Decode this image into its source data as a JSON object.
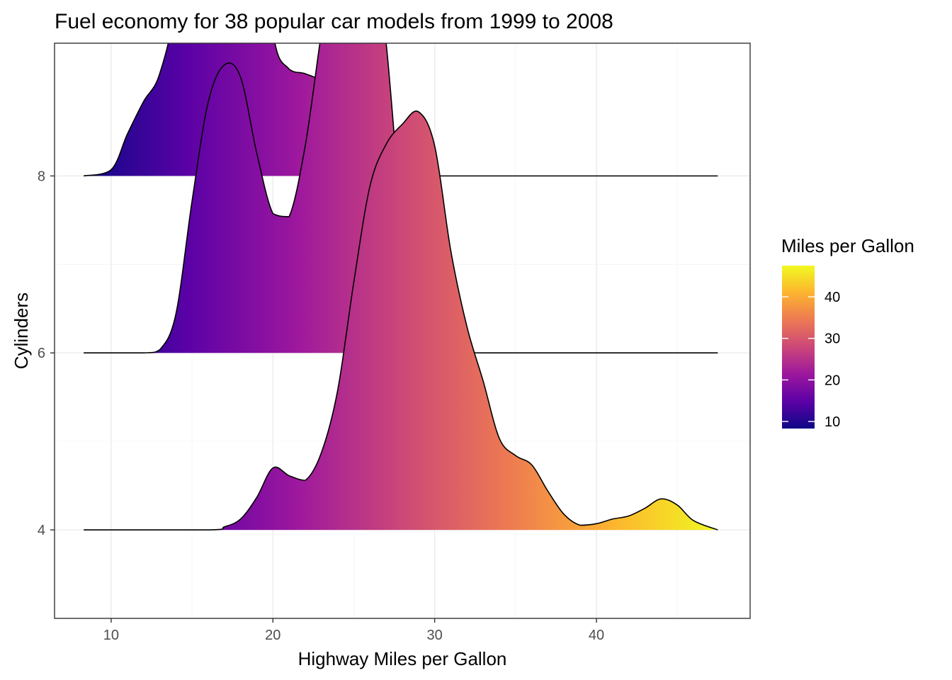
{
  "chart_data": {
    "type": "ridgeline",
    "title": "Fuel economy for 38 popular car models from 1999 to 2008",
    "xlabel": "Highway Miles per Gallon",
    "ylabel": "Cylinders",
    "xlim": [
      6.5,
      49.5
    ],
    "ylim": [
      3,
      9.5
    ],
    "x_ticks": [
      10,
      20,
      30,
      40
    ],
    "y_ticks": [
      4,
      6,
      8
    ],
    "grid": true,
    "density_height_scale": 1.75,
    "series": [
      {
        "cylinders": 8,
        "x": [
          8.3,
          10,
          11,
          12,
          13,
          14,
          15,
          16,
          17,
          18,
          19,
          20,
          21,
          22,
          23,
          24,
          25,
          26,
          27,
          28,
          29,
          30,
          31,
          32,
          47.5
        ],
        "density": [
          0.0,
          0.004,
          0.027,
          0.048,
          0.066,
          0.115,
          0.23,
          0.35,
          0.376,
          0.33,
          0.205,
          0.093,
          0.069,
          0.066,
          0.061,
          0.049,
          0.032,
          0.02,
          0.01,
          0.004,
          0.001,
          0.0,
          0.0,
          0.0,
          0.0
        ]
      },
      {
        "cylinders": 6,
        "x": [
          8.3,
          12,
          13,
          14,
          15,
          16,
          17,
          18,
          19,
          20,
          21,
          22,
          23,
          24,
          25,
          26,
          27,
          28,
          29,
          30,
          31,
          32,
          33,
          47.5
        ],
        "density": [
          0.0,
          0.0,
          0.002,
          0.025,
          0.098,
          0.162,
          0.186,
          0.178,
          0.129,
          0.09,
          0.088,
          0.134,
          0.207,
          0.273,
          0.307,
          0.283,
          0.2,
          0.085,
          0.038,
          0.019,
          0.008,
          0.002,
          0.0,
          0.0
        ]
      },
      {
        "cylinders": 4,
        "x": [
          8.3,
          16,
          17,
          18,
          19,
          20,
          21,
          22,
          23,
          24,
          25,
          26,
          27,
          28,
          29,
          30,
          31,
          32,
          33,
          34,
          35,
          36,
          37,
          38,
          39,
          40,
          41,
          42,
          43,
          44,
          45,
          46,
          47.5
        ],
        "density": [
          0.0,
          0.0,
          0.002,
          0.007,
          0.021,
          0.04,
          0.035,
          0.032,
          0.05,
          0.09,
          0.16,
          0.222,
          0.249,
          0.262,
          0.27,
          0.248,
          0.18,
          0.131,
          0.096,
          0.059,
          0.048,
          0.042,
          0.025,
          0.01,
          0.003,
          0.004,
          0.007,
          0.009,
          0.014,
          0.02,
          0.016,
          0.006,
          0.0
        ]
      }
    ],
    "fill_gradient": {
      "variable": "Highway Miles per Gallon",
      "colormap": "plasma",
      "colors": [
        "#0d0887",
        "#5c01a6",
        "#9c179e",
        "#cc4778",
        "#ed7953",
        "#fdb42f",
        "#f0f921"
      ],
      "domain": [
        8.3,
        47.5
      ]
    },
    "legend": {
      "title": "Miles per Gallon",
      "position": "right",
      "ticks": [
        10,
        20,
        30,
        40
      ],
      "domain": [
        8.3,
        47.5
      ]
    }
  }
}
